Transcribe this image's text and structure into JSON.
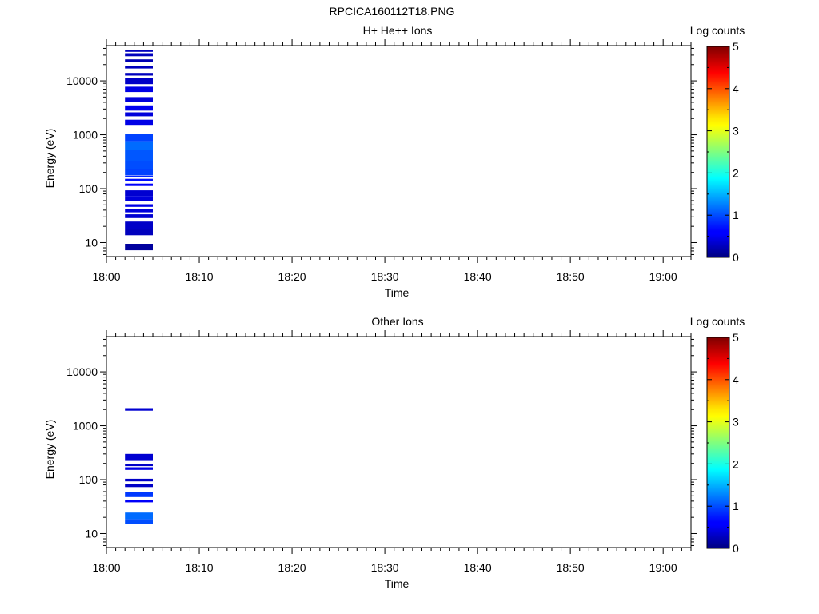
{
  "page_title": "RPCICA160112T18.PNG",
  "chart_data": [
    {
      "type": "heatmap",
      "title": "H+ He++ Ions",
      "xlabel": "Time",
      "ylabel": "Energy (eV)",
      "xlim": [
        "18:00",
        "19:03"
      ],
      "ylim": [
        5.5,
        45000
      ],
      "yscale": "log",
      "xticks": [
        "18:00",
        "18:10",
        "18:20",
        "18:30",
        "18:40",
        "18:50",
        "19:00"
      ],
      "yticks": [
        "10",
        "100",
        "1000",
        "10000"
      ],
      "grid": false,
      "colorbar": {
        "label": "Log counts",
        "min": 0,
        "max": 5,
        "ticks": [
          "0",
          "1",
          "2",
          "3",
          "4",
          "5"
        ],
        "colormap": "jet"
      },
      "data_time_range": [
        "18:02",
        "18:05"
      ],
      "bands": [
        {
          "e_low": 7.2,
          "e_high": 9.5,
          "value": 0.15
        },
        {
          "e_low": 13.7,
          "e_high": 18.0,
          "value": 0.3
        },
        {
          "e_low": 18.0,
          "e_high": 24.5,
          "value": 0.35
        },
        {
          "e_low": 28.5,
          "e_high": 33.5,
          "value": 0.4
        },
        {
          "e_low": 36.5,
          "e_high": 41.5,
          "value": 0.45
        },
        {
          "e_low": 46.0,
          "e_high": 51.5,
          "value": 0.5
        },
        {
          "e_low": 58.0,
          "e_high": 73.0,
          "value": 0.45
        },
        {
          "e_low": 73.0,
          "e_high": 93.0,
          "value": 0.4
        },
        {
          "e_low": 112,
          "e_high": 124,
          "value": 0.6
        },
        {
          "e_low": 138,
          "e_high": 152,
          "value": 0.7
        },
        {
          "e_low": 162,
          "e_high": 175,
          "value": 0.8
        },
        {
          "e_low": 178,
          "e_high": 230,
          "value": 0.95
        },
        {
          "e_low": 230,
          "e_high": 330,
          "value": 1.0
        },
        {
          "e_low": 330,
          "e_high": 520,
          "value": 1.05
        },
        {
          "e_low": 520,
          "e_high": 760,
          "value": 1.15
        },
        {
          "e_low": 760,
          "e_high": 1050,
          "value": 0.95
        },
        {
          "e_low": 1520,
          "e_high": 1900,
          "value": 0.5
        },
        {
          "e_low": 2200,
          "e_high": 2600,
          "value": 0.45
        },
        {
          "e_low": 2800,
          "e_high": 3500,
          "value": 0.55
        },
        {
          "e_low": 4000,
          "e_high": 5000,
          "value": 0.45
        },
        {
          "e_low": 6200,
          "e_high": 7800,
          "value": 0.5
        },
        {
          "e_low": 8700,
          "e_high": 11200,
          "value": 0.35
        },
        {
          "e_low": 12500,
          "e_high": 14000,
          "value": 0.3
        },
        {
          "e_low": 17000,
          "e_high": 19000,
          "value": 0.3
        },
        {
          "e_low": 22000,
          "e_high": 25000,
          "value": 0.25
        },
        {
          "e_low": 28500,
          "e_high": 32500,
          "value": 0.3
        },
        {
          "e_low": 34500,
          "e_high": 38000,
          "value": 0.3
        }
      ]
    },
    {
      "type": "heatmap",
      "title": "Other Ions",
      "xlabel": "Time",
      "ylabel": "Energy (eV)",
      "xlim": [
        "18:00",
        "19:03"
      ],
      "ylim": [
        5.5,
        45000
      ],
      "yscale": "log",
      "xticks": [
        "18:00",
        "18:10",
        "18:20",
        "18:30",
        "18:40",
        "18:50",
        "19:00"
      ],
      "yticks": [
        "10",
        "100",
        "1000",
        "10000"
      ],
      "grid": false,
      "colorbar": {
        "label": "Log counts",
        "min": 0,
        "max": 5,
        "ticks": [
          "0",
          "1",
          "2",
          "3",
          "4",
          "5"
        ],
        "colormap": "jet"
      },
      "data_time_range": [
        "18:02",
        "18:05"
      ],
      "bands": [
        {
          "e_low": 15.0,
          "e_high": 18.5,
          "value": 1.0
        },
        {
          "e_low": 18.5,
          "e_high": 24.5,
          "value": 1.15
        },
        {
          "e_low": 38.0,
          "e_high": 42.5,
          "value": 0.6
        },
        {
          "e_low": 47.5,
          "e_high": 60.0,
          "value": 0.9
        },
        {
          "e_low": 73.0,
          "e_high": 83.0,
          "value": 0.35
        },
        {
          "e_low": 93.0,
          "e_high": 104,
          "value": 0.35
        },
        {
          "e_low": 152,
          "e_high": 170,
          "value": 0.5
        },
        {
          "e_low": 178,
          "e_high": 196,
          "value": 0.35
        },
        {
          "e_low": 230,
          "e_high": 300,
          "value": 0.4
        },
        {
          "e_low": 1900,
          "e_high": 2120,
          "value": 0.4
        }
      ]
    }
  ]
}
